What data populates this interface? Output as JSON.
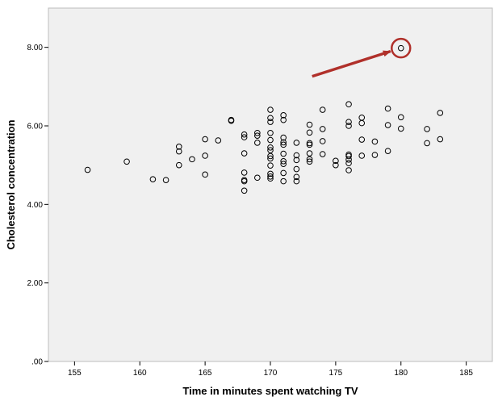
{
  "chart_data": {
    "type": "scatter",
    "xlabel": "Time in minutes spent watching TV",
    "ylabel": "Cholesterol concentration",
    "xlim": [
      153,
      187
    ],
    "ylim": [
      0,
      9.0
    ],
    "x_ticks": [
      155,
      160,
      165,
      170,
      175,
      180,
      185
    ],
    "x_tick_labels": [
      "155",
      "160",
      "165",
      "170",
      "175",
      "180",
      "185"
    ],
    "y_ticks": [
      0,
      2,
      4,
      6,
      8
    ],
    "y_tick_labels": [
      ".00",
      "2.00",
      "4.00",
      "6.00",
      "8.00"
    ],
    "grid": false,
    "plot_background": "#f0f0f0",
    "marker_color": "#000000",
    "highlight_color": "#b0302a",
    "points": [
      [
        156,
        4.88
      ],
      [
        159,
        5.09
      ],
      [
        161,
        4.64
      ],
      [
        162,
        4.62
      ],
      [
        163,
        5.47
      ],
      [
        163,
        5.35
      ],
      [
        163,
        5.0
      ],
      [
        164,
        5.15
      ],
      [
        165,
        5.66
      ],
      [
        165,
        5.24
      ],
      [
        165,
        4.76
      ],
      [
        166,
        5.63
      ],
      [
        167,
        6.15
      ],
      [
        167,
        6.13
      ],
      [
        168,
        5.78
      ],
      [
        168,
        5.71
      ],
      [
        168,
        5.3
      ],
      [
        168,
        4.81
      ],
      [
        168,
        4.62
      ],
      [
        168,
        4.59
      ],
      [
        168,
        4.35
      ],
      [
        169,
        5.82
      ],
      [
        169,
        5.75
      ],
      [
        169,
        5.57
      ],
      [
        169,
        4.68
      ],
      [
        170,
        6.41
      ],
      [
        170,
        6.2
      ],
      [
        170,
        6.1
      ],
      [
        170,
        5.82
      ],
      [
        170,
        5.64
      ],
      [
        170,
        5.45
      ],
      [
        170,
        5.38
      ],
      [
        170,
        5.23
      ],
      [
        170,
        5.17
      ],
      [
        170,
        4.99
      ],
      [
        170,
        4.78
      ],
      [
        170,
        4.71
      ],
      [
        170,
        4.66
      ],
      [
        171,
        6.27
      ],
      [
        171,
        6.15
      ],
      [
        171,
        5.7
      ],
      [
        171,
        5.58
      ],
      [
        171,
        5.52
      ],
      [
        171,
        5.29
      ],
      [
        171,
        5.1
      ],
      [
        171,
        5.03
      ],
      [
        171,
        4.8
      ],
      [
        171,
        4.59
      ],
      [
        172,
        5.57
      ],
      [
        172,
        5.25
      ],
      [
        172,
        5.13
      ],
      [
        172,
        4.9
      ],
      [
        172,
        4.7
      ],
      [
        172,
        4.59
      ],
      [
        173,
        6.03
      ],
      [
        173,
        5.83
      ],
      [
        173,
        5.56
      ],
      [
        173,
        5.52
      ],
      [
        173,
        5.3
      ],
      [
        173,
        5.15
      ],
      [
        173,
        5.09
      ],
      [
        174,
        6.41
      ],
      [
        174,
        5.92
      ],
      [
        174,
        5.61
      ],
      [
        174,
        5.28
      ],
      [
        175,
        5.11
      ],
      [
        175,
        5.0
      ],
      [
        176,
        6.55
      ],
      [
        176,
        6.1
      ],
      [
        176,
        6.0
      ],
      [
        176,
        5.27
      ],
      [
        176,
        5.23
      ],
      [
        176,
        5.14
      ],
      [
        176,
        5.05
      ],
      [
        176,
        4.87
      ],
      [
        177,
        6.21
      ],
      [
        177,
        6.07
      ],
      [
        177,
        5.65
      ],
      [
        177,
        5.24
      ],
      [
        178,
        5.6
      ],
      [
        178,
        5.26
      ],
      [
        179,
        6.44
      ],
      [
        179,
        6.02
      ],
      [
        179,
        5.36
      ],
      [
        180,
        6.22
      ],
      [
        180,
        5.93
      ],
      [
        182,
        5.92
      ],
      [
        182,
        5.56
      ],
      [
        183,
        6.33
      ],
      [
        183,
        5.66
      ]
    ],
    "highlighted_point": [
      180,
      7.98
    ],
    "annotations": [
      {
        "type": "arrow",
        "points_to": "highlighted_point"
      },
      {
        "type": "circle",
        "around": "highlighted_point"
      }
    ]
  }
}
